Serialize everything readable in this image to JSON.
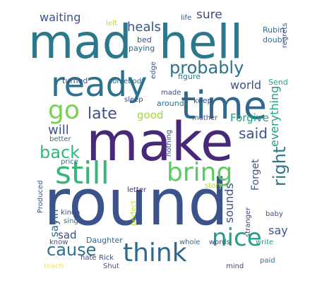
{
  "words": [
    {
      "text": "mad",
      "color": "#2a788e"
    },
    {
      "text": "hell",
      "color": "#2a788e"
    },
    {
      "text": "ready",
      "color": "#2c728e"
    },
    {
      "text": "time",
      "color": "#31688e"
    },
    {
      "text": "make",
      "color": "#482878"
    },
    {
      "text": "round",
      "color": "#3b528b"
    },
    {
      "text": "still",
      "color": "#35b779"
    },
    {
      "text": "bring",
      "color": "#5ec962"
    },
    {
      "text": "think",
      "color": "#31688e"
    },
    {
      "text": "nice",
      "color": "#1fa187"
    },
    {
      "text": "go",
      "color": "#7ad151"
    },
    {
      "text": "probably",
      "color": "#2c728e"
    },
    {
      "text": "late",
      "color": "#3b528b"
    },
    {
      "text": "back",
      "color": "#35b779"
    },
    {
      "text": "right",
      "color": "#2a788e"
    },
    {
      "text": "said",
      "color": "#3b528b"
    },
    {
      "text": "cause",
      "color": "#2c728e"
    },
    {
      "text": "waiting",
      "color": "#3b528b"
    },
    {
      "text": "heals",
      "color": "#3b528b"
    },
    {
      "text": "sure",
      "color": "#3e4989"
    },
    {
      "text": "will",
      "color": "#3b528b"
    },
    {
      "text": "good",
      "color": "#a0da39"
    },
    {
      "text": "Forgive",
      "color": "#1fa187"
    },
    {
      "text": "world",
      "color": "#3b528b"
    },
    {
      "text": "everything",
      "color": "#1fa187"
    },
    {
      "text": "sounds",
      "color": "#3b528b"
    },
    {
      "text": "Forget",
      "color": "#3b528b"
    },
    {
      "text": "sayin'",
      "color": "#31688e"
    },
    {
      "text": "sad",
      "color": "#3e4989"
    },
    {
      "text": "say",
      "color": "#3b528b"
    },
    {
      "text": "left",
      "color": "#bddf26"
    },
    {
      "text": "life",
      "color": "#3b528b"
    },
    {
      "text": "bed",
      "color": "#3b528b"
    },
    {
      "text": "paying",
      "color": "#31688e"
    },
    {
      "text": "Rubin",
      "color": "#31688e"
    },
    {
      "text": "doubt",
      "color": "#2c728e"
    },
    {
      "text": "regrets",
      "color": "#3b528b"
    },
    {
      "text": "edge",
      "color": "#3b528b"
    },
    {
      "text": "turned",
      "color": "#3e4989"
    },
    {
      "text": "somebody",
      "color": "#31688e"
    },
    {
      "text": "figure",
      "color": "#2a788e"
    },
    {
      "text": "Send",
      "color": "#1fa187"
    },
    {
      "text": "sleep",
      "color": "#3e4989"
    },
    {
      "text": "made",
      "color": "#3e4989"
    },
    {
      "text": "keep",
      "color": "#3e4989"
    },
    {
      "text": "around",
      "color": "#2c728e"
    },
    {
      "text": "mother",
      "color": "#3b528b"
    },
    {
      "text": "nothing",
      "color": "#3e4989"
    },
    {
      "text": "better",
      "color": "#2c728e"
    },
    {
      "text": "price",
      "color": "#2c728e"
    },
    {
      "text": "Produced",
      "color": "#3b528b"
    },
    {
      "text": "letter",
      "color": "#482878"
    },
    {
      "text": "story",
      "color": "#addc30"
    },
    {
      "text": "stranger",
      "color": "#3e4989"
    },
    {
      "text": "baby",
      "color": "#3b528b"
    },
    {
      "text": "kinda",
      "color": "#3b528b"
    },
    {
      "text": "sing",
      "color": "#2c728e"
    },
    {
      "text": "perfect",
      "color": "#bddf26"
    },
    {
      "text": "know",
      "color": "#3b528b"
    },
    {
      "text": "Daughter",
      "color": "#31688e"
    },
    {
      "text": "whole",
      "color": "#31688e"
    },
    {
      "text": "words",
      "color": "#3e4989"
    },
    {
      "text": "write",
      "color": "#1fa187"
    },
    {
      "text": "Rick",
      "color": "#3e4989"
    },
    {
      "text": "teach",
      "color": "#fde725"
    },
    {
      "text": "hate",
      "color": "#3e4989"
    },
    {
      "text": "Shut",
      "color": "#3b528b"
    },
    {
      "text": "mind",
      "color": "#3e4989"
    },
    {
      "text": "paid",
      "color": "#2c728e"
    }
  ]
}
